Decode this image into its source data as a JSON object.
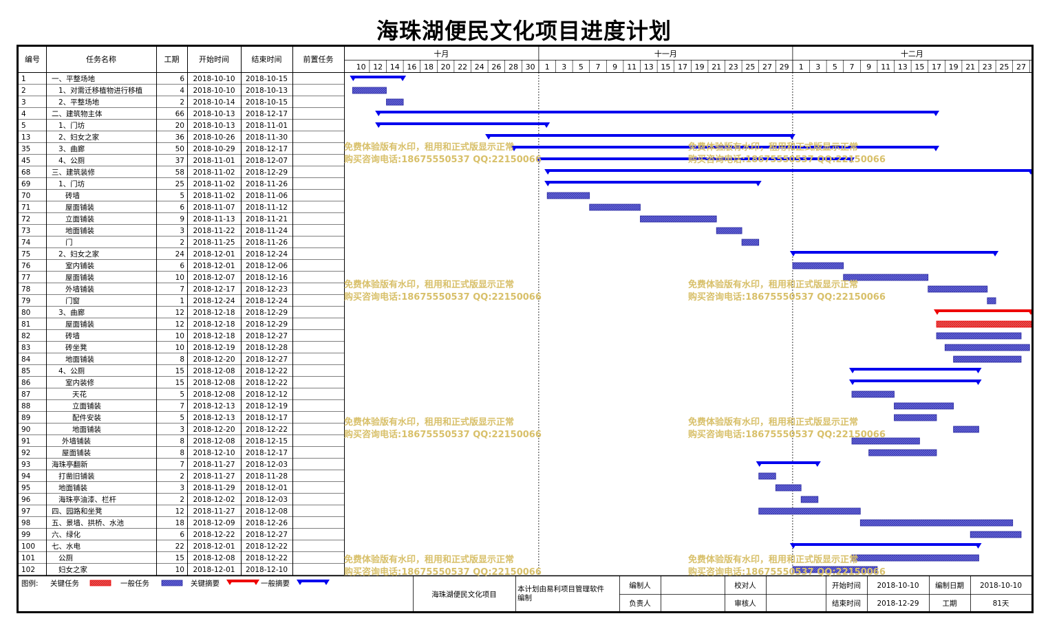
{
  "title": "海珠湖便民文化项目进度计划",
  "columns": {
    "id": "编号",
    "name": "任务名称",
    "dur": "工期",
    "start": "开始时间",
    "end": "结束时间",
    "pred": "前置任务"
  },
  "months": [
    {
      "label": "十月",
      "start": "2018-10-09",
      "end": "2018-10-31"
    },
    {
      "label": "十一月",
      "start": "2018-11-01",
      "end": "2018-11-30"
    },
    {
      "label": "十二月",
      "start": "2018-12-01",
      "end": "2018-12-29"
    }
  ],
  "day_ticks": [
    {
      "date": "2018-10-10",
      "label": "10"
    },
    {
      "date": "2018-10-12",
      "label": "12"
    },
    {
      "date": "2018-10-14",
      "label": "14"
    },
    {
      "date": "2018-10-16",
      "label": "16"
    },
    {
      "date": "2018-10-18",
      "label": "18"
    },
    {
      "date": "2018-10-20",
      "label": "20"
    },
    {
      "date": "2018-10-22",
      "label": "22"
    },
    {
      "date": "2018-10-24",
      "label": "24"
    },
    {
      "date": "2018-10-26",
      "label": "26"
    },
    {
      "date": "2018-10-28",
      "label": "28"
    },
    {
      "date": "2018-10-30",
      "label": "30"
    },
    {
      "date": "2018-11-01",
      "label": "1"
    },
    {
      "date": "2018-11-03",
      "label": "3"
    },
    {
      "date": "2018-11-05",
      "label": "5"
    },
    {
      "date": "2018-11-07",
      "label": "7"
    },
    {
      "date": "2018-11-09",
      "label": "9"
    },
    {
      "date": "2018-11-11",
      "label": "11"
    },
    {
      "date": "2018-11-13",
      "label": "13"
    },
    {
      "date": "2018-11-15",
      "label": "15"
    },
    {
      "date": "2018-11-17",
      "label": "17"
    },
    {
      "date": "2018-11-19",
      "label": "19"
    },
    {
      "date": "2018-11-21",
      "label": "21"
    },
    {
      "date": "2018-11-23",
      "label": "23"
    },
    {
      "date": "2018-11-25",
      "label": "25"
    },
    {
      "date": "2018-11-27",
      "label": "27"
    },
    {
      "date": "2018-11-29",
      "label": "29"
    },
    {
      "date": "2018-12-01",
      "label": "1"
    },
    {
      "date": "2018-12-03",
      "label": "3"
    },
    {
      "date": "2018-12-05",
      "label": "5"
    },
    {
      "date": "2018-12-07",
      "label": "7"
    },
    {
      "date": "2018-12-09",
      "label": "9"
    },
    {
      "date": "2018-12-11",
      "label": "11"
    },
    {
      "date": "2018-12-13",
      "label": "13"
    },
    {
      "date": "2018-12-15",
      "label": "15"
    },
    {
      "date": "2018-12-17",
      "label": "17"
    },
    {
      "date": "2018-12-19",
      "label": "19"
    },
    {
      "date": "2018-12-21",
      "label": "21"
    },
    {
      "date": "2018-12-23",
      "label": "23"
    },
    {
      "date": "2018-12-25",
      "label": "25"
    },
    {
      "date": "2018-12-27",
      "label": "27"
    }
  ],
  "chart_data": {
    "type": "gantt",
    "x_range": [
      "2018-10-09",
      "2018-12-29"
    ],
    "tasks": [
      {
        "id": "1",
        "name": "一、平整场地",
        "indent": 0,
        "dur": "6",
        "start": "2018-10-10",
        "end": "2018-10-15",
        "kind": "summary",
        "critical": false
      },
      {
        "id": "2",
        "name": "1、对需迁移植物进行移植",
        "indent": 1,
        "dur": "4",
        "start": "2018-10-10",
        "end": "2018-10-13",
        "kind": "task",
        "critical": false
      },
      {
        "id": "3",
        "name": "2、平整场地",
        "indent": 1,
        "dur": "2",
        "start": "2018-10-14",
        "end": "2018-10-15",
        "kind": "task",
        "critical": false
      },
      {
        "id": "4",
        "name": "二、建筑物主体",
        "indent": 0,
        "dur": "66",
        "start": "2018-10-13",
        "end": "2018-12-17",
        "kind": "summary",
        "critical": false
      },
      {
        "id": "5",
        "name": "1、门坊",
        "indent": 1,
        "dur": "20",
        "start": "2018-10-13",
        "end": "2018-11-01",
        "kind": "summary",
        "critical": false
      },
      {
        "id": "13",
        "name": "2、妇女之家",
        "indent": 1,
        "dur": "36",
        "start": "2018-10-26",
        "end": "2018-11-30",
        "kind": "summary",
        "critical": false
      },
      {
        "id": "35",
        "name": "3、曲廊",
        "indent": 1,
        "dur": "50",
        "start": "2018-10-29",
        "end": "2018-12-17",
        "kind": "summary",
        "critical": false
      },
      {
        "id": "45",
        "name": "4、公厕",
        "indent": 1,
        "dur": "37",
        "start": "2018-11-01",
        "end": "2018-12-07",
        "kind": "summary",
        "critical": false
      },
      {
        "id": "68",
        "name": "三、建筑装修",
        "indent": 0,
        "dur": "58",
        "start": "2018-11-02",
        "end": "2018-12-29",
        "kind": "summary",
        "critical": false
      },
      {
        "id": "69",
        "name": "1、门坊",
        "indent": 1,
        "dur": "25",
        "start": "2018-11-02",
        "end": "2018-11-26",
        "kind": "summary",
        "critical": false
      },
      {
        "id": "70",
        "name": "砖墙",
        "indent": 2,
        "dur": "5",
        "start": "2018-11-02",
        "end": "2018-11-06",
        "kind": "task",
        "critical": false
      },
      {
        "id": "71",
        "name": "屋面铺装",
        "indent": 2,
        "dur": "6",
        "start": "2018-11-07",
        "end": "2018-11-12",
        "kind": "task",
        "critical": false
      },
      {
        "id": "72",
        "name": "立面铺装",
        "indent": 2,
        "dur": "9",
        "start": "2018-11-13",
        "end": "2018-11-21",
        "kind": "task",
        "critical": false
      },
      {
        "id": "73",
        "name": "地面铺装",
        "indent": 2,
        "dur": "3",
        "start": "2018-11-22",
        "end": "2018-11-24",
        "kind": "task",
        "critical": false
      },
      {
        "id": "74",
        "name": "门",
        "indent": 2,
        "dur": "2",
        "start": "2018-11-25",
        "end": "2018-11-26",
        "kind": "task",
        "critical": false
      },
      {
        "id": "75",
        "name": "2、妇女之家",
        "indent": 1,
        "dur": "24",
        "start": "2018-12-01",
        "end": "2018-12-24",
        "kind": "summary",
        "critical": false
      },
      {
        "id": "76",
        "name": "室内铺装",
        "indent": 2,
        "dur": "6",
        "start": "2018-12-01",
        "end": "2018-12-06",
        "kind": "task",
        "critical": false
      },
      {
        "id": "77",
        "name": "屋面铺装",
        "indent": 2,
        "dur": "10",
        "start": "2018-12-07",
        "end": "2018-12-16",
        "kind": "task",
        "critical": false
      },
      {
        "id": "78",
        "name": "外墙铺装",
        "indent": 2,
        "dur": "7",
        "start": "2018-12-17",
        "end": "2018-12-23",
        "kind": "task",
        "critical": false
      },
      {
        "id": "79",
        "name": "门窗",
        "indent": 2,
        "dur": "1",
        "start": "2018-12-24",
        "end": "2018-12-24",
        "kind": "task",
        "critical": false
      },
      {
        "id": "80",
        "name": "3、曲廊",
        "indent": 1,
        "dur": "12",
        "start": "2018-12-18",
        "end": "2018-12-29",
        "kind": "summary",
        "critical": true
      },
      {
        "id": "81",
        "name": "屋面铺装",
        "indent": 2,
        "dur": "12",
        "start": "2018-12-18",
        "end": "2018-12-29",
        "kind": "task",
        "critical": true
      },
      {
        "id": "82",
        "name": "砖墙",
        "indent": 2,
        "dur": "10",
        "start": "2018-12-18",
        "end": "2018-12-27",
        "kind": "task",
        "critical": false
      },
      {
        "id": "83",
        "name": "砖坐凳",
        "indent": 2,
        "dur": "10",
        "start": "2018-12-19",
        "end": "2018-12-28",
        "kind": "task",
        "critical": false
      },
      {
        "id": "84",
        "name": "地面铺装",
        "indent": 2,
        "dur": "8",
        "start": "2018-12-20",
        "end": "2018-12-27",
        "kind": "task",
        "critical": false
      },
      {
        "id": "85",
        "name": "4、公厕",
        "indent": 1,
        "dur": "15",
        "start": "2018-12-08",
        "end": "2018-12-22",
        "kind": "summary",
        "critical": false
      },
      {
        "id": "86",
        "name": "室内装修",
        "indent": 2,
        "dur": "15",
        "start": "2018-12-08",
        "end": "2018-12-22",
        "kind": "summary",
        "critical": false
      },
      {
        "id": "87",
        "name": "天花",
        "indent": 3,
        "dur": "5",
        "start": "2018-12-08",
        "end": "2018-12-12",
        "kind": "task",
        "critical": false
      },
      {
        "id": "88",
        "name": "立面铺装",
        "indent": 3,
        "dur": "7",
        "start": "2018-12-13",
        "end": "2018-12-19",
        "kind": "task",
        "critical": false
      },
      {
        "id": "89",
        "name": "配件安装",
        "indent": 3,
        "dur": "5",
        "start": "2018-12-13",
        "end": "2018-12-17",
        "kind": "task",
        "critical": false
      },
      {
        "id": "90",
        "name": "地面铺装",
        "indent": 3,
        "dur": "3",
        "start": "2018-12-20",
        "end": "2018-12-22",
        "kind": "task",
        "critical": false
      },
      {
        "id": "91",
        "name": "外墙铺装",
        "indent": 1.5,
        "dur": "8",
        "start": "2018-12-08",
        "end": "2018-12-15",
        "kind": "task",
        "critical": false
      },
      {
        "id": "92",
        "name": "屋面铺装",
        "indent": 1.5,
        "dur": "8",
        "start": "2018-12-10",
        "end": "2018-12-17",
        "kind": "task",
        "critical": false
      },
      {
        "id": "93",
        "name": "海珠亭翻新",
        "indent": 0,
        "dur": "7",
        "start": "2018-11-27",
        "end": "2018-12-03",
        "kind": "summary",
        "critical": false
      },
      {
        "id": "94",
        "name": "打凿旧铺装",
        "indent": 1,
        "dur": "2",
        "start": "2018-11-27",
        "end": "2018-11-28",
        "kind": "task",
        "critical": false
      },
      {
        "id": "95",
        "name": "地面铺装",
        "indent": 1,
        "dur": "3",
        "start": "2018-11-29",
        "end": "2018-12-01",
        "kind": "task",
        "critical": false
      },
      {
        "id": "96",
        "name": "海珠亭油漆、栏杆",
        "indent": 1,
        "dur": "2",
        "start": "2018-12-02",
        "end": "2018-12-03",
        "kind": "task",
        "critical": false
      },
      {
        "id": "97",
        "name": "四、园路和坐凳",
        "indent": 0,
        "dur": "12",
        "start": "2018-11-27",
        "end": "2018-12-08",
        "kind": "task",
        "critical": false
      },
      {
        "id": "98",
        "name": "五、景墙、拱桥、水池",
        "indent": 0,
        "dur": "18",
        "start": "2018-12-09",
        "end": "2018-12-26",
        "kind": "task",
        "critical": false
      },
      {
        "id": "99",
        "name": "六、绿化",
        "indent": 0,
        "dur": "6",
        "start": "2018-12-22",
        "end": "2018-12-27",
        "kind": "task",
        "critical": false
      },
      {
        "id": "100",
        "name": "七、水电",
        "indent": 0,
        "dur": "22",
        "start": "2018-12-01",
        "end": "2018-12-22",
        "kind": "summary",
        "critical": false
      },
      {
        "id": "101",
        "name": "公厕",
        "indent": 1,
        "dur": "15",
        "start": "2018-12-08",
        "end": "2018-12-22",
        "kind": "task",
        "critical": false
      },
      {
        "id": "102",
        "name": "妇女之家",
        "indent": 1,
        "dur": "10",
        "start": "2018-12-01",
        "end": "2018-12-10",
        "kind": "task",
        "critical": false
      }
    ]
  },
  "watermark": {
    "line1": "免费体验版有水印，租用和正式版显示正常",
    "line2": "购买咨询电话:18675550537 QQ:22150066"
  },
  "legend": {
    "prefix": "图例:",
    "critical_task": "关键任务",
    "normal_task": "一般任务",
    "critical_summary": "关键摘要",
    "normal_summary": "一般摘要"
  },
  "footer": {
    "project": "海珠湖便民文化项目",
    "software": "本计划由易利项目管理软件编制",
    "compiler_label": "编制人",
    "compiler_value": "",
    "checker_label": "校对人",
    "checker_value": "",
    "owner_label": "负责人",
    "owner_value": "",
    "reviewer_label": "审核人",
    "reviewer_value": "",
    "start_label": "开始时间",
    "start_value": "2018-10-10",
    "end_label": "结束时间",
    "end_value": "2018-12-29",
    "made_label": "编制日期",
    "made_value": "2018-10-10",
    "dur_label": "工期",
    "dur_value": "81天"
  },
  "colors": {
    "summary": "#0000ee",
    "task_fill": "#6a6adc",
    "task_stroke": "#2a2aa0",
    "critical": "#ee0000",
    "critical_task_fill": "#e06060",
    "watermark": "#d8c06a"
  }
}
